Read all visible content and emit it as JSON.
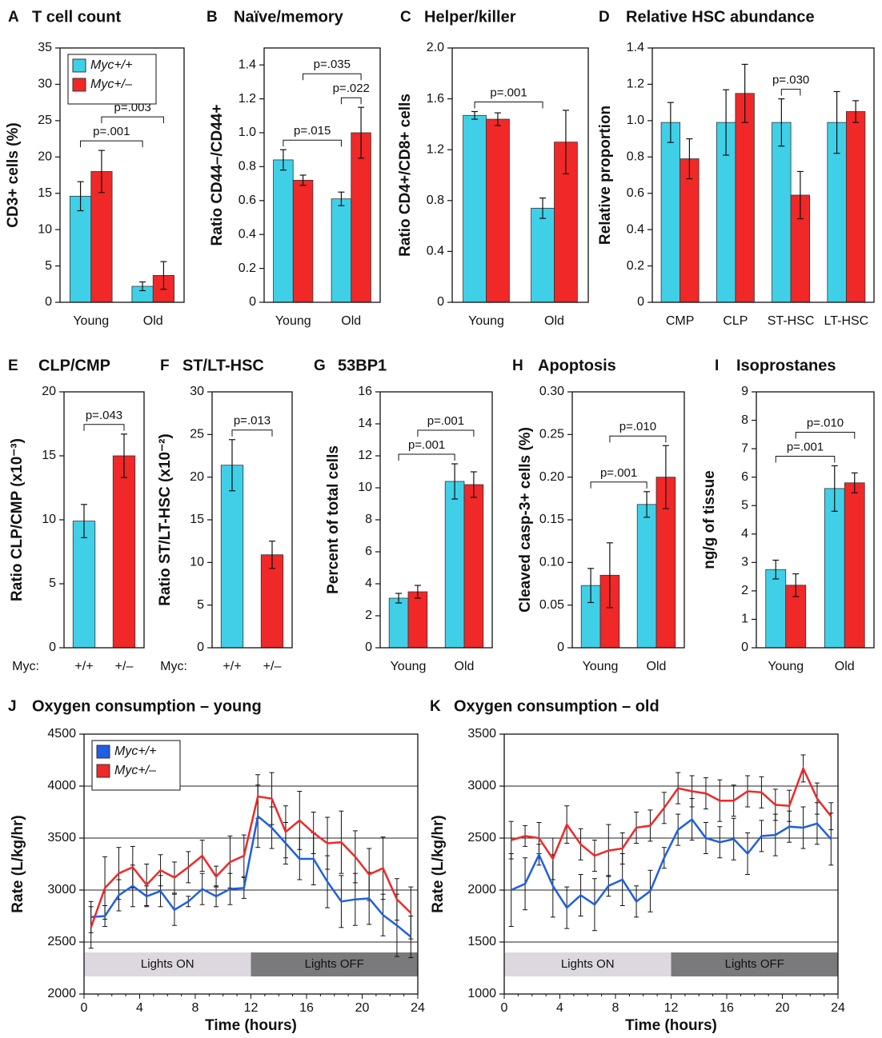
{
  "chart_data": [
    {
      "type": "bar",
      "panel": "A",
      "title": "T cell count",
      "ylabel": "CD3+ cells (%)",
      "categories": [
        "Young",
        "Old"
      ],
      "series": [
        {
          "name": "Myc+/+",
          "color": "#3fd0e8",
          "values": [
            14.6,
            2.2
          ],
          "errors": [
            2.0,
            0.6
          ]
        },
        {
          "name": "Myc+/–",
          "color": "#f02828",
          "values": [
            18.0,
            3.7
          ],
          "errors": [
            2.9,
            1.9
          ]
        }
      ],
      "ylim": [
        0,
        35
      ],
      "yticks": [
        0,
        5,
        10,
        15,
        20,
        25,
        30,
        35
      ],
      "legend": "upper left",
      "annotations": [
        {
          "text": "p=.001",
          "between": [
            [
              0,
              0
            ],
            [
              1,
              0
            ]
          ]
        },
        {
          "text": "p=.003",
          "between": [
            [
              0,
              1
            ],
            [
              1,
              1
            ]
          ]
        }
      ]
    },
    {
      "type": "bar",
      "panel": "B",
      "title": "Naïve/memory",
      "ylabel": "Ratio CD44–/CD44+",
      "categories": [
        "Young",
        "Old"
      ],
      "series": [
        {
          "color": "#3fd0e8",
          "values": [
            0.84,
            0.61
          ],
          "errors": [
            0.06,
            0.04
          ]
        },
        {
          "color": "#f02828",
          "values": [
            0.72,
            1.0
          ],
          "errors": [
            0.03,
            0.15
          ]
        }
      ],
      "ylim": [
        0,
        1.5
      ],
      "yticks": [
        0,
        0.2,
        0.4,
        0.6,
        0.8,
        {
          "value": 1.0,
          "label": "1.0"
        },
        1.2,
        1.4
      ],
      "annotations": [
        {
          "text": "p=.015",
          "between": [
            [
              0,
              0
            ],
            [
              1,
              0
            ]
          ]
        },
        {
          "text": "p=.022",
          "between": [
            [
              1,
              0
            ],
            [
              1,
              1
            ]
          ]
        },
        {
          "text": "p=.035",
          "between": [
            [
              0,
              1
            ],
            [
              1,
              1
            ]
          ]
        }
      ]
    },
    {
      "type": "bar",
      "panel": "C",
      "title": "Helper/killer",
      "ylabel": "Ratio CD4+/CD8+ cells",
      "categories": [
        "Young",
        "Old"
      ],
      "series": [
        {
          "color": "#3fd0e8",
          "values": [
            1.47,
            0.74
          ],
          "errors": [
            0.03,
            0.08
          ]
        },
        {
          "color": "#f02828",
          "values": [
            1.44,
            1.26
          ],
          "errors": [
            0.05,
            0.25
          ]
        }
      ],
      "ylim": [
        0,
        2.0
      ],
      "yticks": [
        0,
        0.4,
        0.8,
        1.2,
        1.6,
        {
          "value": 2.0,
          "label": "2.0"
        }
      ],
      "annotations": [
        {
          "text": "p=.001",
          "between": [
            [
              0,
              0
            ],
            [
              1,
              0
            ]
          ]
        }
      ]
    },
    {
      "type": "bar",
      "panel": "D",
      "title": "Relative HSC abundance",
      "ylabel": "Relative proportion",
      "categories": [
        "CMP",
        "CLP",
        "ST-HSC",
        "LT-HSC"
      ],
      "series": [
        {
          "color": "#3fd0e8",
          "values": [
            0.99,
            0.99,
            0.99,
            0.99
          ],
          "errors": [
            0.11,
            0.18,
            0.13,
            0.17
          ]
        },
        {
          "color": "#f02828",
          "values": [
            0.79,
            1.15,
            0.59,
            1.05
          ],
          "errors": [
            0.11,
            0.16,
            0.13,
            0.06
          ]
        }
      ],
      "ylim": [
        0,
        1.4
      ],
      "yticks": [
        0,
        0.2,
        0.4,
        0.6,
        0.8,
        {
          "value": 1.0,
          "label": "1.0"
        },
        1.2,
        1.4
      ],
      "annotations": [
        {
          "text": "p=.030",
          "between": [
            [
              2,
              0
            ],
            [
              2,
              1
            ]
          ]
        }
      ]
    },
    {
      "type": "bar",
      "panel": "E",
      "title": "CLP/CMP",
      "ylabel": "Ratio CLP/CMP (x10⁻³)",
      "xprefix": "Myc:",
      "categories": [
        "+/+",
        "+/–"
      ],
      "values": [
        9.9,
        15.0
      ],
      "errors": [
        1.3,
        1.7
      ],
      "colors": [
        "#3fd0e8",
        "#f02828"
      ],
      "ylim": [
        0,
        20
      ],
      "yticks": [
        0,
        5,
        10,
        15,
        20
      ],
      "annotations": [
        {
          "text": "p=.043",
          "between": [
            [
              0
            ],
            [
              1
            ]
          ]
        }
      ]
    },
    {
      "type": "bar",
      "panel": "F",
      "title": "ST/LT-HSC",
      "ylabel": "Ratio ST/LT-HSC (x10⁻²)",
      "xprefix": "Myc:",
      "categories": [
        "+/+",
        "+/–"
      ],
      "values": [
        21.4,
        10.9
      ],
      "errors": [
        3.0,
        1.6
      ],
      "colors": [
        "#3fd0e8",
        "#f02828"
      ],
      "ylim": [
        0,
        30
      ],
      "yticks": [
        0,
        5,
        10,
        15,
        20,
        25,
        30
      ],
      "annotations": [
        {
          "text": "p=.013",
          "between": [
            [
              0
            ],
            [
              1
            ]
          ]
        }
      ]
    },
    {
      "type": "bar",
      "panel": "G",
      "title": "53BP1",
      "ylabel": "Percent of total cells",
      "categories": [
        "Young",
        "Old"
      ],
      "series": [
        {
          "color": "#3fd0e8",
          "values": [
            3.1,
            10.4
          ],
          "errors": [
            0.3,
            1.1
          ]
        },
        {
          "color": "#f02828",
          "values": [
            3.5,
            10.2
          ],
          "errors": [
            0.4,
            0.8
          ]
        }
      ],
      "ylim": [
        0,
        16
      ],
      "yticks": [
        0,
        2,
        4,
        6,
        8,
        10,
        12,
        14,
        16
      ],
      "annotations": [
        {
          "text": "p=.001",
          "between": [
            [
              0,
              0
            ],
            [
              1,
              0
            ]
          ]
        },
        {
          "text": "p=.001",
          "between": [
            [
              0,
              1
            ],
            [
              1,
              1
            ]
          ]
        }
      ]
    },
    {
      "type": "bar",
      "panel": "H",
      "title": "Apoptosis",
      "ylabel": "Cleaved casp-3+ cells (%)",
      "categories": [
        "Young",
        "Old"
      ],
      "series": [
        {
          "color": "#3fd0e8",
          "values": [
            0.073,
            0.168
          ],
          "errors": [
            0.02,
            0.015
          ]
        },
        {
          "color": "#f02828",
          "values": [
            0.085,
            0.2
          ],
          "errors": [
            0.038,
            0.037
          ]
        }
      ],
      "ylim": [
        0,
        0.3
      ],
      "yticks": [
        0,
        0.05,
        {
          "value": 0.1,
          "label": "0.10"
        },
        0.15,
        {
          "value": 0.2,
          "label": "0.20"
        },
        0.25,
        {
          "value": 0.3,
          "label": "0.30"
        }
      ],
      "annotations": [
        {
          "text": "p=.001",
          "between": [
            [
              0,
              0
            ],
            [
              1,
              0
            ]
          ]
        },
        {
          "text": "p=.010",
          "between": [
            [
              0,
              1
            ],
            [
              1,
              1
            ]
          ]
        }
      ]
    },
    {
      "type": "bar",
      "panel": "I",
      "title": "Isoprostanes",
      "ylabel": "ng/g of tissue",
      "categories": [
        "Young",
        "Old"
      ],
      "series": [
        {
          "color": "#3fd0e8",
          "values": [
            2.75,
            5.6
          ],
          "errors": [
            0.33,
            0.8
          ]
        },
        {
          "color": "#f02828",
          "values": [
            2.2,
            5.8
          ],
          "errors": [
            0.4,
            0.35
          ]
        }
      ],
      "ylim": [
        0,
        9
      ],
      "yticks": [
        0,
        1,
        2,
        3,
        4,
        5,
        6,
        7,
        8,
        9
      ],
      "annotations": [
        {
          "text": "p=.001",
          "between": [
            [
              0,
              0
            ],
            [
              1,
              0
            ]
          ]
        },
        {
          "text": "p=.010",
          "between": [
            [
              0,
              1
            ],
            [
              1,
              1
            ]
          ]
        }
      ]
    },
    {
      "type": "line",
      "panel": "J",
      "title": "Oxygen consumption – young",
      "ylabel": "Rate (L/kg/hr)",
      "xlabel": "Time (hours)",
      "x": [
        0.5,
        1.5,
        2.5,
        3.5,
        4.5,
        5.5,
        6.5,
        7.5,
        8.5,
        9.5,
        10.5,
        11.5,
        12.5,
        13.5,
        14.5,
        15.5,
        16.5,
        17.5,
        18.5,
        19.5,
        20.5,
        21.5,
        22.5,
        23.5
      ],
      "series": [
        {
          "name": "Myc+/+",
          "color": "#1f5fe0",
          "values": [
            2740,
            2750,
            2950,
            3040,
            2940,
            2990,
            2810,
            2890,
            3010,
            2940,
            3010,
            3020,
            3710,
            3600,
            3450,
            3300,
            3300,
            3080,
            2890,
            2910,
            2920,
            2760,
            2660,
            2550
          ],
          "errors": [
            150,
            100,
            150,
            200,
            100,
            150,
            150,
            50,
            150,
            100,
            150,
            100,
            300,
            200,
            200,
            200,
            250,
            250,
            250,
            250,
            250,
            200,
            300,
            200
          ]
        },
        {
          "name": "Myc+/–",
          "color": "#f02828",
          "values": [
            2640,
            3020,
            3160,
            3220,
            3050,
            3190,
            3120,
            3220,
            3330,
            3130,
            3270,
            3330,
            3900,
            3880,
            3560,
            3670,
            3550,
            3450,
            3460,
            3320,
            3150,
            3210,
            2910,
            2780
          ],
          "errors": [
            200,
            300,
            250,
            200,
            200,
            150,
            150,
            150,
            150,
            100,
            250,
            200,
            210,
            250,
            250,
            280,
            200,
            250,
            300,
            250,
            250,
            300,
            200,
            250
          ]
        }
      ],
      "xlim": [
        0,
        24
      ],
      "xticks": [
        0,
        4,
        8,
        12,
        16,
        20,
        24
      ],
      "ylim": [
        2000,
        4500
      ],
      "yticks": [
        2000,
        2500,
        3000,
        3500,
        4000,
        4500
      ],
      "grid": true,
      "legend": "upper left",
      "bands": [
        {
          "label": "Lights ON",
          "from": 0,
          "to": 12,
          "color": "#ddd8e0"
        },
        {
          "label": "Lights OFF",
          "from": 12,
          "to": 24,
          "color": "#7a7a7c"
        }
      ]
    },
    {
      "type": "line",
      "panel": "K",
      "title": "Oxygen consumption – old",
      "ylabel": "Rate (L/kg/hr)",
      "xlabel": "Time (hours)",
      "x": [
        0.5,
        1.5,
        2.5,
        3.5,
        4.5,
        5.5,
        6.5,
        7.5,
        8.5,
        9.5,
        10.5,
        11.5,
        12.5,
        13.5,
        14.5,
        15.5,
        16.5,
        17.5,
        18.5,
        19.5,
        20.5,
        21.5,
        22.5,
        23.5
      ],
      "series": [
        {
          "color": "#1f5fe0",
          "values": [
            2000,
            2060,
            2340,
            2040,
            1830,
            1950,
            1860,
            2040,
            2100,
            1890,
            1990,
            2310,
            2580,
            2680,
            2500,
            2460,
            2490,
            2350,
            2520,
            2530,
            2610,
            2600,
            2640,
            2490
          ],
          "errors": [
            350,
            250,
            100,
            300,
            200,
            200,
            250,
            100,
            250,
            150,
            200,
            100,
            150,
            200,
            150,
            150,
            200,
            200,
            150,
            200,
            150,
            200,
            200,
            250
          ]
        },
        {
          "color": "#f02828",
          "values": [
            2480,
            2520,
            2500,
            2300,
            2630,
            2440,
            2330,
            2380,
            2400,
            2600,
            2620,
            2790,
            2980,
            2950,
            2930,
            2860,
            2860,
            2950,
            2940,
            2820,
            2810,
            3170,
            2880,
            2710
          ],
          "errors": [
            180,
            100,
            150,
            200,
            180,
            150,
            150,
            250,
            150,
            150,
            150,
            150,
            150,
            150,
            150,
            200,
            150,
            150,
            150,
            150,
            150,
            130,
            150,
            130
          ]
        }
      ],
      "xlim": [
        0,
        24
      ],
      "xticks": [
        0,
        4,
        8,
        12,
        16,
        20,
        24
      ],
      "ylim": [
        1000,
        3500
      ],
      "yticks": [
        1000,
        1500,
        2000,
        2500,
        3000,
        3500
      ],
      "grid": true,
      "bands": [
        {
          "label": "Lights ON",
          "from": 0,
          "to": 12,
          "color": "#ddd8e0"
        },
        {
          "label": "Lights OFF",
          "from": 12,
          "to": 24,
          "color": "#7a7a7c"
        }
      ]
    }
  ]
}
